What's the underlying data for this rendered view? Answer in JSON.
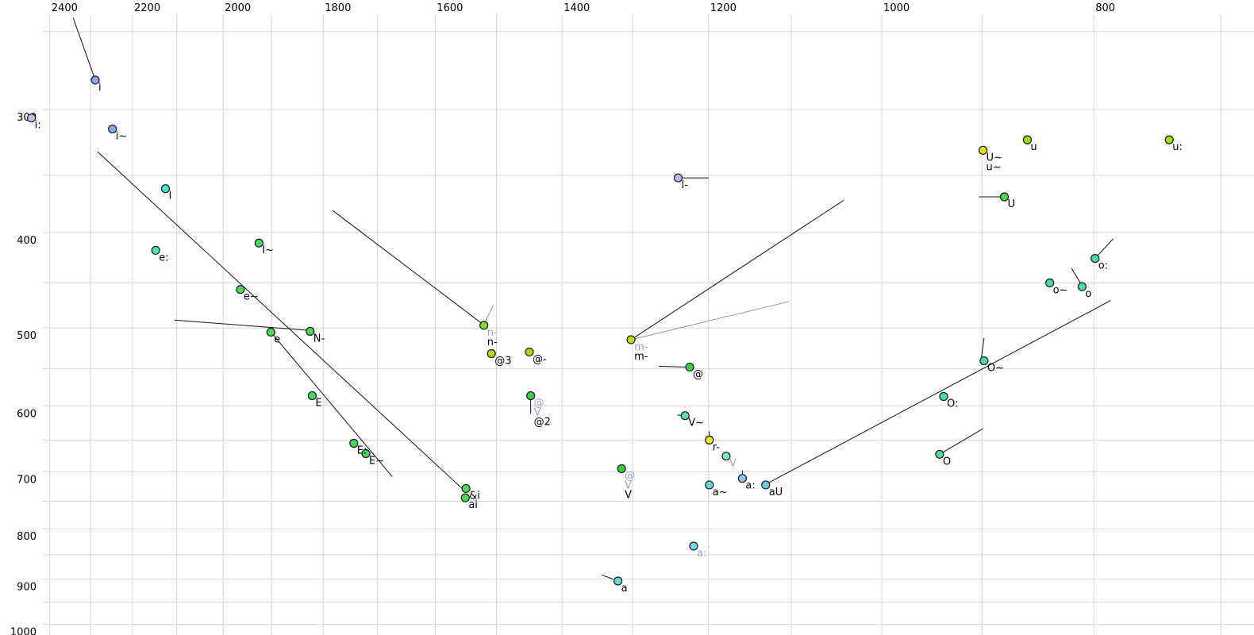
{
  "chart_data": {
    "type": "scatter",
    "title": "",
    "description": "Vowel formant chart: F2 (Hz) on reversed logarithmic top axis, F1 (Hz) on logarithmic left axis, X-SAMPA vowel labels",
    "x_axis": {
      "label": "",
      "ticks": [
        2400,
        2200,
        2000,
        1800,
        1600,
        1400,
        1200,
        1000,
        800
      ],
      "grid_min": 700,
      "grid_max": 2400,
      "grid_step": 100,
      "scale": "log",
      "reversed": true
    },
    "y_axis": {
      "label": "",
      "ticks": [
        300,
        400,
        500,
        600,
        700,
        800,
        900,
        1000
      ],
      "grid_min": 250,
      "grid_max": 1000,
      "grid_step": 50,
      "scale": "log",
      "reversed": true
    },
    "colors": {
      "background": "#ffffff",
      "grid": "#d4d4d4",
      "tick_label": "#000000",
      "black_label": "#000000",
      "gray_label": "#9aa2cd",
      "line_black": "#111111",
      "line_gray": "#999999",
      "dot_stroke": "#1a1a1a"
    },
    "points": [
      {
        "labels": [
          {
            "t": "i",
            "c": "black"
          }
        ],
        "f2": 2288,
        "f1": 280,
        "fill": "#82aaec"
      },
      {
        "labels": [
          {
            "t": "i:",
            "c": "black"
          }
        ],
        "f2": 2447,
        "f1": 306,
        "fill": "#cdbaf2"
      },
      {
        "labels": [
          {
            "t": "i~",
            "c": "black"
          }
        ],
        "f2": 2247,
        "f1": 314,
        "fill": "#82aaec"
      },
      {
        "labels": [
          {
            "t": "I",
            "c": "black"
          }
        ],
        "f2": 2125,
        "f1": 361,
        "fill": "#42e8cf"
      },
      {
        "labels": [
          {
            "t": "e:",
            "c": "black"
          }
        ],
        "f2": 2147,
        "f1": 417,
        "fill": "#4fe8ad"
      },
      {
        "labels": [
          {
            "t": "I~",
            "c": "black"
          }
        ],
        "f2": 1926,
        "f1": 410,
        "fill": "#47d957"
      },
      {
        "labels": [
          {
            "t": "e~",
            "c": "black"
          }
        ],
        "f2": 1964,
        "f1": 457,
        "fill": "#47d957"
      },
      {
        "labels": [
          {
            "t": "e",
            "c": "black"
          }
        ],
        "f2": 1902,
        "f1": 505,
        "fill": "#47d957"
      },
      {
        "labels": [
          {
            "t": "N-",
            "c": "black"
          }
        ],
        "f2": 1825,
        "f1": 504,
        "fill": "#47d957"
      },
      {
        "labels": [
          {
            "t": "E",
            "c": "black"
          }
        ],
        "f2": 1821,
        "f1": 586,
        "fill": "#47d957"
      },
      {
        "labels": [
          {
            "t": "E:",
            "c": "black"
          }
        ],
        "f2": 1743,
        "f1": 655,
        "fill": "#47d957"
      },
      {
        "labels": [
          {
            "t": "E~",
            "c": "black"
          }
        ],
        "f2": 1721,
        "f1": 671,
        "fill": "#47d957"
      },
      {
        "labels": [
          {
            "t": "&i",
            "c": "black"
          }
        ],
        "f2": 1549,
        "f1": 728,
        "fill": "#47d957"
      },
      {
        "labels": [
          {
            "t": "ai",
            "c": "black"
          }
        ],
        "f2": 1550,
        "f1": 744,
        "fill": "#47d957"
      },
      {
        "labels": [
          {
            "t": "n-",
            "c": "gray"
          },
          {
            "t": "n-",
            "c": "black"
          }
        ],
        "f2": 1520,
        "f1": 497,
        "fill": "#86d926"
      },
      {
        "labels": [
          {
            "t": "@3",
            "c": "black"
          }
        ],
        "f2": 1508,
        "f1": 531,
        "fill": "#a9dc08"
      },
      {
        "labels": [
          {
            "t": "@-",
            "c": "black"
          }
        ],
        "f2": 1449,
        "f1": 529,
        "fill": "#a9dc08"
      },
      {
        "labels": [
          {
            "t": "@",
            "c": "gray"
          },
          {
            "t": "V",
            "c": "gray"
          },
          {
            "t": "@2",
            "c": "black"
          }
        ],
        "f2": 1447,
        "f1": 586,
        "fill": "#3ecf4a"
      },
      {
        "labels": [
          {
            "t": "m-",
            "c": "gray"
          },
          {
            "t": "m-",
            "c": "black"
          }
        ],
        "f2": 1302,
        "f1": 514,
        "fill": "#c6dc00"
      },
      {
        "labels": [
          {
            "t": "l-",
            "c": "black"
          }
        ],
        "f2": 1239,
        "f1": 352,
        "fill": "#c3b6ee"
      },
      {
        "labels": [
          {
            "t": "@",
            "c": "black"
          }
        ],
        "f2": 1224,
        "f1": 548,
        "fill": "#3ecf4a"
      },
      {
        "labels": [
          {
            "t": "V~",
            "c": "black"
          }
        ],
        "f2": 1230,
        "f1": 614,
        "fill": "#55e0b8"
      },
      {
        "labels": [
          {
            "t": "r-",
            "c": "black"
          }
        ],
        "f2": 1199,
        "f1": 650,
        "fill": "#ece832"
      },
      {
        "labels": [
          {
            "t": "V",
            "c": "gray"
          }
        ],
        "f2": 1178,
        "f1": 675,
        "fill": "#7de8b8"
      },
      {
        "labels": [
          {
            "t": "@",
            "c": "gray"
          },
          {
            "t": "V",
            "c": "gray"
          },
          {
            "t": "V",
            "c": "black"
          }
        ],
        "f2": 1315,
        "f1": 695,
        "fill": "#35cc3f"
      },
      {
        "labels": [
          {
            "t": "a~",
            "c": "black"
          }
        ],
        "f2": 1199,
        "f1": 722,
        "fill": "#63dcd4"
      },
      {
        "labels": [
          {
            "t": "a:",
            "c": "black"
          }
        ],
        "f2": 1158,
        "f1": 711,
        "fill": "#8cc2ec"
      },
      {
        "labels": [
          {
            "t": "aU",
            "c": "black"
          }
        ],
        "f2": 1130,
        "f1": 722,
        "fill": "#74c6e8"
      },
      {
        "labels": [
          {
            "t": "a:",
            "c": "gray"
          }
        ],
        "f2": 1219,
        "f1": 833,
        "fill": "#6fd8e6"
      },
      {
        "labels": [
          {
            "t": "a",
            "c": "black"
          }
        ],
        "f2": 1320,
        "f1": 904,
        "fill": "#63dcd4"
      },
      {
        "labels": [
          {
            "t": "U~",
            "c": "black"
          },
          {
            "t": "u~",
            "c": "black"
          }
        ],
        "f2": 899,
        "f1": 330,
        "fill": "#e3e018"
      },
      {
        "labels": [
          {
            "t": "u",
            "c": "black"
          }
        ],
        "f2": 858,
        "f1": 322,
        "fill": "#a9dc08"
      },
      {
        "labels": [
          {
            "t": "u:",
            "c": "black"
          }
        ],
        "f2": 739,
        "f1": 322,
        "fill": "#a9dc08"
      },
      {
        "labels": [
          {
            "t": "U",
            "c": "black"
          }
        ],
        "f2": 879,
        "f1": 368,
        "fill": "#4fd058"
      },
      {
        "labels": [
          {
            "t": "o:",
            "c": "black"
          }
        ],
        "f2": 799,
        "f1": 425,
        "fill": "#47dd9e"
      },
      {
        "labels": [
          {
            "t": "o~",
            "c": "black"
          }
        ],
        "f2": 838,
        "f1": 450,
        "fill": "#47dd9e"
      },
      {
        "labels": [
          {
            "t": "o",
            "c": "black"
          }
        ],
        "f2": 810,
        "f1": 454,
        "fill": "#47dd9e"
      },
      {
        "labels": [
          {
            "t": "O~",
            "c": "black"
          }
        ],
        "f2": 898,
        "f1": 540,
        "fill": "#47dd9e"
      },
      {
        "labels": [
          {
            "t": "O:",
            "c": "black"
          }
        ],
        "f2": 937,
        "f1": 587,
        "fill": "#47dd9e"
      },
      {
        "labels": [
          {
            "t": "O",
            "c": "black"
          }
        ],
        "f2": 941,
        "f1": 672,
        "fill": "#47dd9e"
      }
    ],
    "segments": [
      {
        "from": [
          2342,
          242
        ],
        "to": [
          2288,
          280
        ],
        "color": "black"
      },
      {
        "from": [
          2283,
          331
        ],
        "to": [
          1548,
          735
        ],
        "color": "black"
      },
      {
        "from": [
          2105,
          491
        ],
        "to": [
          1825,
          503
        ],
        "color": "black"
      },
      {
        "from": [
          1902,
          505
        ],
        "to": [
          1674,
          708
        ],
        "color": "black"
      },
      {
        "from": [
          1782,
          380
        ],
        "to": [
          1523,
          495
        ],
        "color": "black"
      },
      {
        "from": [
          1520,
          496
        ],
        "to": [
          1505,
          474
        ],
        "color": "gray"
      },
      {
        "from": [
          1239,
          352
        ],
        "to": [
          1200,
          352
        ],
        "color": "black"
      },
      {
        "from": [
          1302,
          514
        ],
        "to": [
          1041,
          371
        ],
        "color": "black"
      },
      {
        "from": [
          1302,
          514
        ],
        "to": [
          1102,
          470
        ],
        "color": "gray"
      },
      {
        "from": [
          1264,
          547
        ],
        "to": [
          1224,
          548
        ],
        "color": "black"
      },
      {
        "from": [
          1447,
          586
        ],
        "to": [
          1447,
          611
        ],
        "color": "black"
      },
      {
        "from": [
          1240,
          613
        ],
        "to": [
          1230,
          614
        ],
        "color": "black"
      },
      {
        "from": [
          1199,
          637
        ],
        "to": [
          1199,
          650
        ],
        "color": "black"
      },
      {
        "from": [
          1158,
          698
        ],
        "to": [
          1158,
          711
        ],
        "color": "black"
      },
      {
        "from": [
          1343,
          891
        ],
        "to": [
          1327,
          900
        ],
        "color": "black"
      },
      {
        "from": [
          1130,
          721
        ],
        "to": [
          786,
          469
        ],
        "color": "black"
      },
      {
        "from": [
          898,
          512
        ],
        "to": [
          901,
          541
        ],
        "color": "black"
      },
      {
        "from": [
          941,
          672
        ],
        "to": [
          899,
          633
        ],
        "color": "black"
      },
      {
        "from": [
          799,
          425
        ],
        "to": [
          784,
          406
        ],
        "color": "black"
      },
      {
        "from": [
          819,
          435
        ],
        "to": [
          810,
          453
        ],
        "color": "black"
      },
      {
        "from": [
          903,
          368
        ],
        "to": [
          879,
          368
        ],
        "color": "black"
      }
    ]
  }
}
